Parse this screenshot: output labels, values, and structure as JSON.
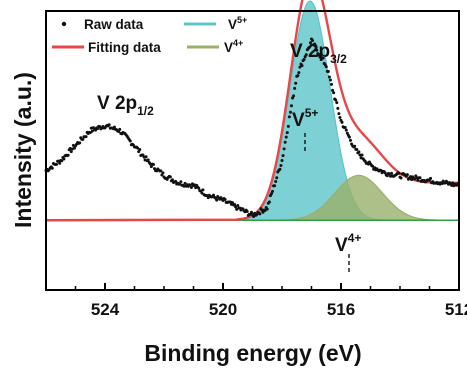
{
  "chart_data": {
    "type": "line",
    "xlabel": "Binding energy (eV)",
    "ylabel": "Intensity (a.u.)",
    "x_reversed": true,
    "xlim": [
      526,
      512
    ],
    "ylim": [
      0,
      1.12
    ],
    "xticks": [
      "524",
      "520",
      "516",
      "512"
    ],
    "yticks": "none",
    "grid": false,
    "legend_position": "top-left",
    "legend": [
      {
        "label": "Raw data",
        "marker": "dot",
        "color": "#111111"
      },
      {
        "label": "V",
        "sup": "5+",
        "marker": "filled-line",
        "color": "#5dc4c8"
      },
      {
        "label": "Fitting data",
        "marker": "line",
        "color": "#e8474a"
      },
      {
        "label": "V",
        "sup": "4+",
        "marker": "filled-line",
        "color": "#9ab06b"
      }
    ],
    "annotations": [
      {
        "text": "V 2p",
        "sub": "1/2"
      },
      {
        "text": "V 2p",
        "sub": "3/2"
      },
      {
        "text": "V",
        "sup": "5+"
      },
      {
        "text": "V",
        "sup": "4+"
      }
    ],
    "background_level": 0.28,
    "high_energy_background_level": 0.43,
    "series": [
      {
        "name": "Raw data",
        "style": "scatter",
        "color": "#111111",
        "points": [
          [
            526.0,
            0.48
          ],
          [
            525.5,
            0.52
          ],
          [
            525.0,
            0.58
          ],
          [
            524.5,
            0.64
          ],
          [
            524.0,
            0.66
          ],
          [
            523.5,
            0.64
          ],
          [
            523.0,
            0.58
          ],
          [
            522.5,
            0.51
          ],
          [
            522.0,
            0.46
          ],
          [
            521.5,
            0.43
          ],
          [
            521.0,
            0.42
          ],
          [
            520.5,
            0.38
          ],
          [
            520.0,
            0.36
          ],
          [
            519.5,
            0.33
          ],
          [
            519.0,
            0.3
          ],
          [
            518.5,
            0.33
          ],
          [
            518.0,
            0.52
          ],
          [
            517.5,
            0.86
          ],
          [
            517.0,
            1.0
          ],
          [
            516.5,
            0.9
          ],
          [
            516.0,
            0.68
          ],
          [
            515.5,
            0.56
          ],
          [
            515.0,
            0.5
          ],
          [
            514.5,
            0.47
          ],
          [
            514.0,
            0.46
          ],
          [
            513.5,
            0.45
          ],
          [
            513.0,
            0.44
          ],
          [
            512.5,
            0.43
          ],
          [
            512.0,
            0.42
          ]
        ]
      },
      {
        "name": "V",
        "sup": "5+",
        "style": "filled",
        "color": "#5dc4c8",
        "center": 517.05,
        "height": 0.88,
        "fwhm": 1.6
      },
      {
        "name": "V",
        "sup": "4+",
        "style": "filled",
        "color": "#9ab06b",
        "center": 515.4,
        "height": 0.18,
        "fwhm": 1.9
      },
      {
        "name": "Fitting data",
        "style": "line",
        "color": "#e8474a"
      }
    ]
  }
}
